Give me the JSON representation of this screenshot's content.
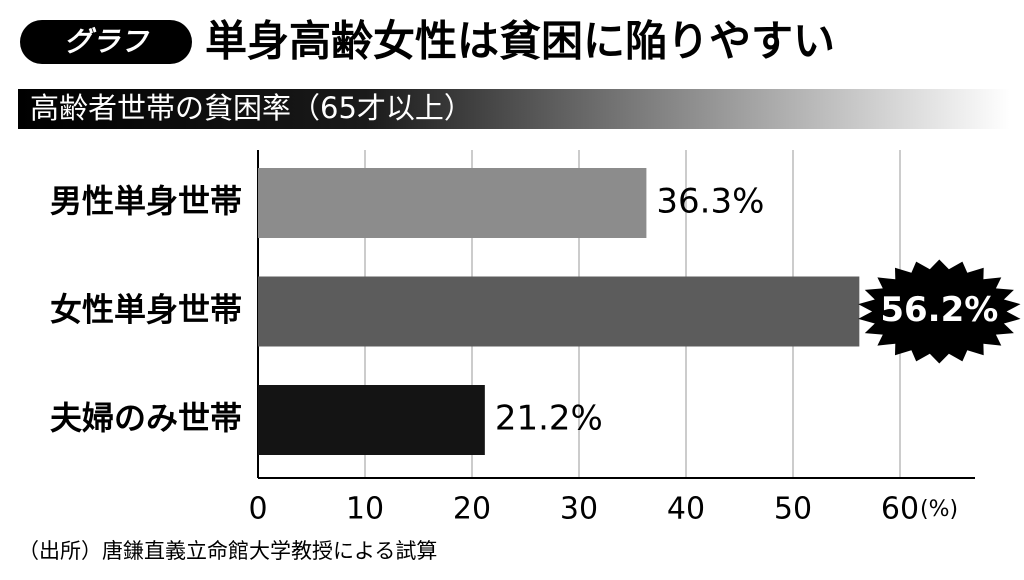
{
  "chart_data": {
    "type": "bar",
    "orientation": "horizontal",
    "badge": "グラフ",
    "title": "単身高齢女性は貧困に陥りやすい",
    "subtitle": "高齢者世帯の貧困率（65才以上）",
    "categories": [
      "男性単身世帯",
      "女性単身世帯",
      "夫婦のみ世帯"
    ],
    "values": [
      36.3,
      56.2,
      21.2
    ],
    "value_labels": [
      "36.3%",
      "56.2%",
      "21.2%"
    ],
    "colors": [
      "#8c8c8c",
      "#5c5c5c",
      "#141414"
    ],
    "highlight_index": 1,
    "xlim": [
      0,
      60
    ],
    "xticks": [
      0,
      10,
      20,
      30,
      40,
      50,
      60
    ],
    "xlabel": "(%)",
    "grid": true,
    "source": "（出所）唐鎌直義立命館大学教授による試算"
  }
}
